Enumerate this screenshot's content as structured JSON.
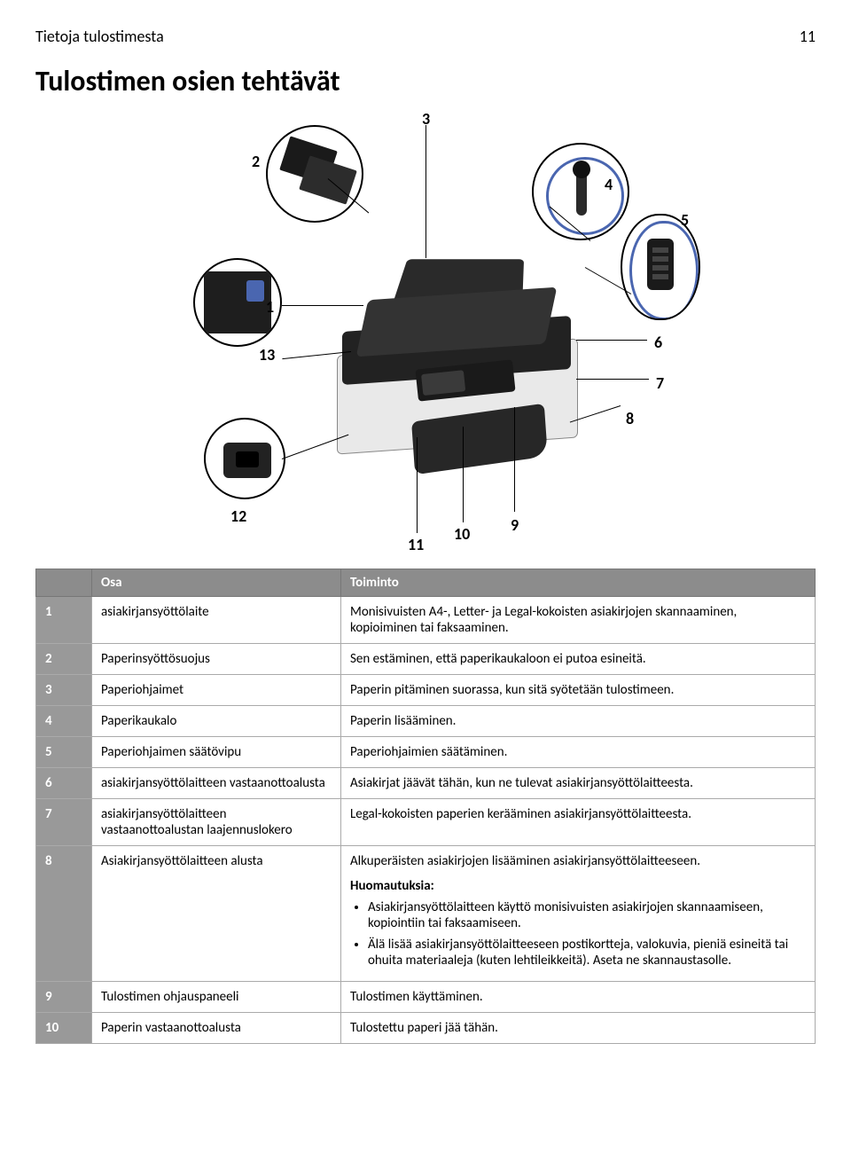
{
  "header": {
    "running_title": "Tietoja tulostimesta",
    "page_number": "11"
  },
  "title": "Tulostimen osien tehtävät",
  "figure": {
    "labels": [
      "1",
      "2",
      "3",
      "4",
      "5",
      "6",
      "7",
      "8",
      "9",
      "10",
      "11",
      "12",
      "13"
    ]
  },
  "table": {
    "columns": {
      "blank": "",
      "part": "Osa",
      "function": "Toiminto"
    },
    "rows": [
      {
        "n": "1",
        "part": "asiakirjansyöttölaite",
        "fn": "Monisivuisten A4-, Letter- ja Legal-kokoisten asiakirjojen skannaaminen, kopioiminen tai faksaaminen."
      },
      {
        "n": "2",
        "part": "Paperinsyöttösuojus",
        "fn": "Sen estäminen, että paperikaukaloon ei putoa esineitä."
      },
      {
        "n": "3",
        "part": "Paperiohjaimet",
        "fn": "Paperin pitäminen suorassa, kun sitä syötetään tulostimeen."
      },
      {
        "n": "4",
        "part": "Paperikaukalo",
        "fn": "Paperin lisääminen."
      },
      {
        "n": "5",
        "part": "Paperiohjaimen säätövipu",
        "fn": "Paperiohjaimien säätäminen."
      },
      {
        "n": "6",
        "part": "asiakirjansyöttölaitteen vastaanottoalusta",
        "fn": "Asiakirjat jäävät tähän, kun ne tulevat asiakirjansyöttölaitteesta."
      },
      {
        "n": "7",
        "part": "asiakirjansyöttölaitteen vastaanottoalustan laajennuslokero",
        "fn": "Legal-kokoisten paperien kerääminen asiakirjansyöttölaitteesta."
      },
      {
        "n": "8",
        "part": "Asiakirjansyöttölaitteen alusta",
        "fn_lead": "Alkuperäisten asiakirjojen lisääminen asiakirjansyöttölaitteeseen.",
        "notes_heading": "Huomautuksia:",
        "notes": [
          "Asiakirjansyöttölaitteen käyttö monisivuisten asiakirjojen skannaamiseen, kopiointiin tai faksaamiseen.",
          "Älä lisää asiakirjansyöttölaitteeseen postikortteja, valokuvia, pieniä esineitä tai ohuita materiaaleja (kuten lehtileikkeitä). Aseta ne skannaustasolle."
        ]
      },
      {
        "n": "9",
        "part": "Tulostimen ohjauspaneeli",
        "fn": "Tulostimen käyttäminen."
      },
      {
        "n": "10",
        "part": "Paperin vastaanottoalusta",
        "fn": "Tulostettu paperi jää tähän."
      }
    ]
  }
}
